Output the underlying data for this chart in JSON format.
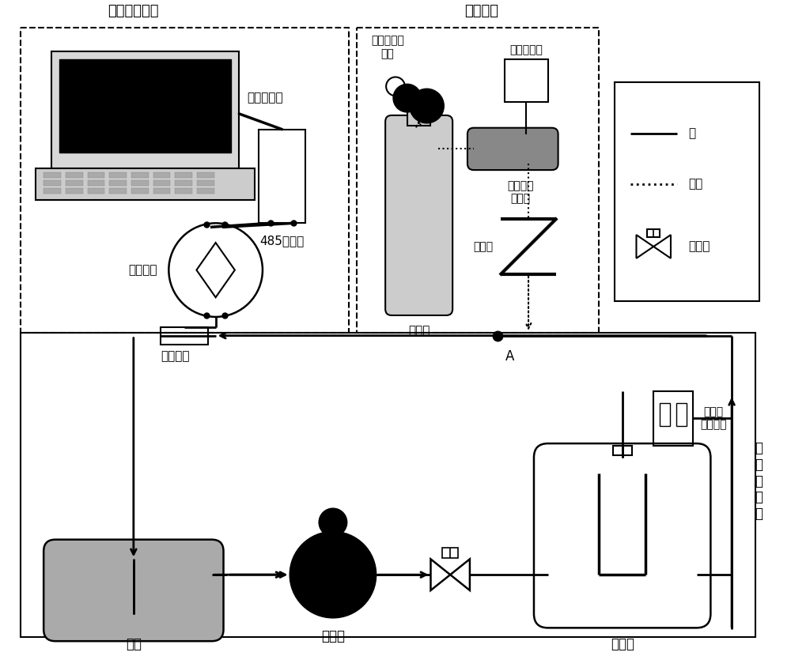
{
  "bg_color": "#ffffff",
  "labels": {
    "data_acq": "数据采集系统",
    "gas_inject": "注气设备",
    "laptop": "笔记本电脑",
    "adapter": "485适配器",
    "secondary": "二次仪表",
    "industrial_reg": "工业气体调\n压器",
    "flow_integrator": "流量积算仪",
    "mass_flow": "质量流量\n控制器",
    "check_valve": "单向阀",
    "argon_bottle": "氩气瓶",
    "primary": "一次仪表",
    "point_A": "A",
    "sodium_tank": "钠罐",
    "em_pump": "电磁泵",
    "stabilizer": "稳压罐",
    "perm_flowmeter": "永磁式\n钠流量计",
    "sodium_loop": "钠\n回\n路\n系\n统",
    "sodium_legend": "钠",
    "gas_legend": "气体",
    "valve_legend": "电动阀"
  }
}
